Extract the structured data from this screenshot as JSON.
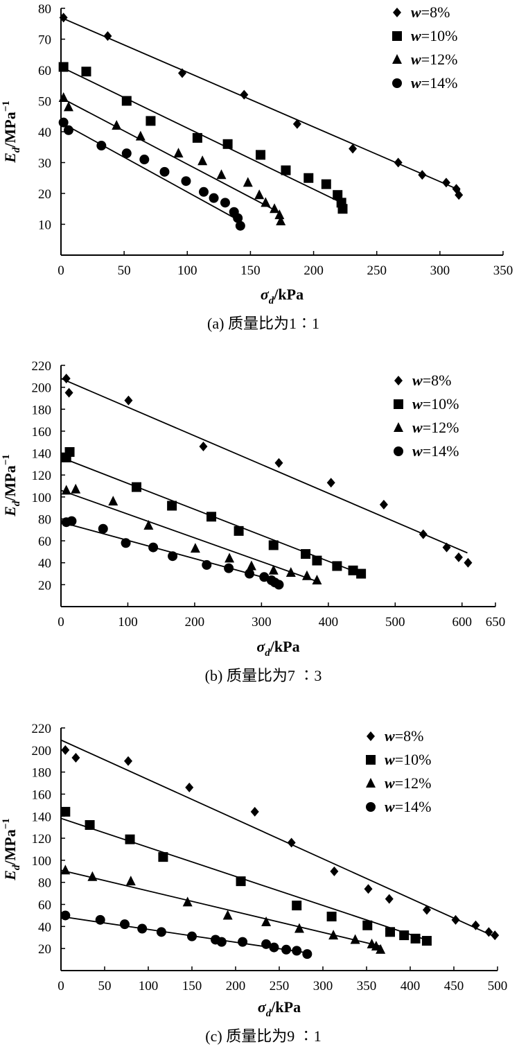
{
  "chart_data": [
    {
      "type": "scatter",
      "caption": "(a) 质量比为1∶1",
      "xlabel": "σd/kPa",
      "ylabel": "Ed/MPa−1",
      "xlim": [
        0,
        350
      ],
      "ylim": [
        0,
        80
      ],
      "xticks": [
        "0",
        "50",
        "100",
        "150",
        "200",
        "250",
        "300",
        "350"
      ],
      "yticks": [
        "10",
        "20",
        "30",
        "40",
        "50",
        "60",
        "70",
        "80"
      ],
      "series": [
        {
          "name": "w=8%",
          "marker": "diamond",
          "points": [
            [
              2,
              77
            ],
            [
              37,
              71
            ],
            [
              96,
              59
            ],
            [
              145,
              52
            ],
            [
              187,
              42.5
            ],
            [
              231,
              34.5
            ],
            [
              267,
              30
            ],
            [
              286,
              26
            ],
            [
              305,
              23.5
            ],
            [
              313,
              21.5
            ],
            [
              315,
              19.5
            ]
          ],
          "fit": [
            [
              0,
              77
            ],
            [
              316,
              21
            ]
          ]
        },
        {
          "name": "w=10%",
          "marker": "square",
          "points": [
            [
              2,
              61
            ],
            [
              20,
              59.5
            ],
            [
              52,
              50
            ],
            [
              71,
              43.5
            ],
            [
              108,
              38
            ],
            [
              132,
              36
            ],
            [
              158,
              32.5
            ],
            [
              178,
              27.5
            ],
            [
              196,
              25
            ],
            [
              210,
              23
            ],
            [
              219,
              19.5
            ],
            [
              222,
              17
            ],
            [
              223,
              15
            ]
          ],
          "fit": [
            [
              0,
              61
            ],
            [
              222,
              17
            ]
          ]
        },
        {
          "name": "w=12%",
          "marker": "triangle",
          "points": [
            [
              2,
              51
            ],
            [
              6,
              48
            ],
            [
              44,
              42
            ],
            [
              63,
              38.5
            ],
            [
              93,
              33
            ],
            [
              112,
              30.5
            ],
            [
              127,
              26
            ],
            [
              148,
              23.5
            ],
            [
              157,
              19.5
            ],
            [
              162,
              17
            ],
            [
              169,
              15
            ],
            [
              173,
              13
            ],
            [
              174,
              11
            ]
          ],
          "fit": [
            [
              0,
              51
            ],
            [
              172,
              14
            ]
          ]
        },
        {
          "name": "w=14%",
          "marker": "circle",
          "points": [
            [
              2,
              43
            ],
            [
              6,
              40.5
            ],
            [
              32,
              35.5
            ],
            [
              52,
              33
            ],
            [
              66,
              31
            ],
            [
              82,
              27
            ],
            [
              99,
              24
            ],
            [
              113,
              20.5
            ],
            [
              121,
              18.5
            ],
            [
              130,
              17
            ],
            [
              137,
              14
            ],
            [
              140,
              12
            ],
            [
              142,
              9.5
            ]
          ],
          "fit": [
            [
              0,
              43
            ],
            [
              142,
              11
            ]
          ]
        }
      ],
      "legend": [
        "w=8%",
        "w=10%",
        "w=12%",
        "w=14%"
      ]
    },
    {
      "type": "scatter",
      "caption": "(b) 质量比为7 ∶3",
      "xlabel": "σd/kPa",
      "ylabel": "Ed/MPa−1",
      "xlim": [
        0,
        650
      ],
      "ylim": [
        0,
        220
      ],
      "xticks": [
        "0",
        "100",
        "200",
        "300",
        "400",
        "500",
        "600",
        "650"
      ],
      "yticks": [
        "20",
        "40",
        "60",
        "80",
        "100",
        "120",
        "140",
        "160",
        "180",
        "200",
        "220"
      ],
      "series": [
        {
          "name": "w=8%",
          "marker": "diamond",
          "points": [
            [
              8,
              208
            ],
            [
              12,
              195
            ],
            [
              101,
              188
            ],
            [
              213,
              146
            ],
            [
              326,
              131
            ],
            [
              404,
              113
            ],
            [
              483,
              93
            ],
            [
              542,
              66
            ],
            [
              577,
              54
            ],
            [
              595,
              45
            ],
            [
              609,
              40
            ]
          ],
          "fit": [
            [
              0,
              208
            ],
            [
              608,
              49
            ]
          ]
        },
        {
          "name": "w=10%",
          "marker": "square",
          "points": [
            [
              8,
              136
            ],
            [
              13,
              141
            ],
            [
              113,
              109
            ],
            [
              166,
              92
            ],
            [
              225,
              82
            ],
            [
              266,
              69
            ],
            [
              318,
              56
            ],
            [
              366,
              48
            ],
            [
              383,
              42
            ],
            [
              413,
              37
            ],
            [
              437,
              33
            ],
            [
              449,
              30
            ]
          ],
          "fit": [
            [
              0,
              136
            ],
            [
              448,
              30
            ]
          ]
        },
        {
          "name": "w=12%",
          "marker": "triangle",
          "points": [
            [
              8,
              106
            ],
            [
              22,
              107
            ],
            [
              78,
              96
            ],
            [
              131,
              74
            ],
            [
              201,
              53
            ],
            [
              252,
              44
            ],
            [
              285,
              37
            ],
            [
              318,
              33
            ],
            [
              344,
              31
            ],
            [
              368,
              28
            ],
            [
              383,
              24
            ]
          ],
          "fit": [
            [
              0,
              106
            ],
            [
              383,
              23
            ]
          ]
        },
        {
          "name": "w=14%",
          "marker": "circle",
          "points": [
            [
              8,
              77
            ],
            [
              16,
              78
            ],
            [
              63,
              71
            ],
            [
              97,
              58
            ],
            [
              138,
              54
            ],
            [
              167,
              46
            ],
            [
              218,
              38
            ],
            [
              251,
              35
            ],
            [
              282,
              30
            ],
            [
              304,
              27
            ],
            [
              315,
              24
            ],
            [
              320,
              22
            ],
            [
              326,
              20
            ]
          ],
          "fit": [
            [
              0,
              77
            ],
            [
              325,
              23
            ]
          ]
        }
      ],
      "legend": [
        "w=8%",
        "w=10%",
        "w=12%",
        "w=14%"
      ]
    },
    {
      "type": "scatter",
      "caption": "(c) 质量比为9 ∶1",
      "xlabel": "σd/kPa",
      "ylabel": "Ed/MPa−1",
      "xlim": [
        0,
        500
      ],
      "ylim": [
        0,
        220
      ],
      "xticks": [
        "0",
        "50",
        "100",
        "150",
        "200",
        "250",
        "300",
        "350",
        "400",
        "450",
        "500"
      ],
      "yticks": [
        "20",
        "40",
        "60",
        "80",
        "100",
        "120",
        "140",
        "160",
        "180",
        "200",
        "220"
      ],
      "series": [
        {
          "name": "w=8%",
          "marker": "diamond",
          "points": [
            [
              5,
              200
            ],
            [
              17,
              193
            ],
            [
              77,
              190
            ],
            [
              147,
              166
            ],
            [
              222,
              144
            ],
            [
              264,
              116
            ],
            [
              313,
              90
            ],
            [
              352,
              74
            ],
            [
              376,
              65
            ],
            [
              419,
              55
            ],
            [
              452,
              46
            ],
            [
              475,
              41
            ],
            [
              490,
              35
            ],
            [
              497,
              32
            ]
          ],
          "fit": [
            [
              0,
              209
            ],
            [
              499,
              30
            ]
          ]
        },
        {
          "name": "w=10%",
          "marker": "square",
          "points": [
            [
              5,
              144
            ],
            [
              33,
              132
            ],
            [
              79,
              119
            ],
            [
              117,
              103
            ],
            [
              206,
              81
            ],
            [
              270,
              59
            ],
            [
              310,
              49
            ],
            [
              351,
              41
            ],
            [
              377,
              35
            ],
            [
              393,
              32
            ],
            [
              406,
              29
            ],
            [
              419,
              27
            ]
          ],
          "fit": [
            [
              0,
              138
            ],
            [
              418,
              28
            ]
          ]
        },
        {
          "name": "w=12%",
          "marker": "triangle",
          "points": [
            [
              5,
              91
            ],
            [
              36,
              85
            ],
            [
              80,
              81
            ],
            [
              145,
              62
            ],
            [
              191,
              50
            ],
            [
              235,
              44
            ],
            [
              273,
              38
            ],
            [
              312,
              32
            ],
            [
              337,
              28
            ],
            [
              356,
              24
            ],
            [
              361,
              22
            ],
            [
              366,
              19
            ]
          ],
          "fit": [
            [
              0,
              91
            ],
            [
              367,
              22
            ]
          ]
        },
        {
          "name": "w=14%",
          "marker": "circle",
          "points": [
            [
              5,
              50
            ],
            [
              45,
              46
            ],
            [
              73,
              42
            ],
            [
              93,
              38
            ],
            [
              115,
              35
            ],
            [
              150,
              31
            ],
            [
              177,
              28
            ],
            [
              184,
              26
            ],
            [
              208,
              26
            ],
            [
              235,
              24
            ],
            [
              244,
              21
            ],
            [
              258,
              19
            ],
            [
              270,
              18
            ],
            [
              282,
              15
            ]
          ],
          "fit": [
            [
              0,
              49
            ],
            [
              283,
              16
            ]
          ]
        }
      ],
      "legend": [
        "w=8%",
        "w=10%",
        "w=12%",
        "w=14%"
      ]
    }
  ]
}
